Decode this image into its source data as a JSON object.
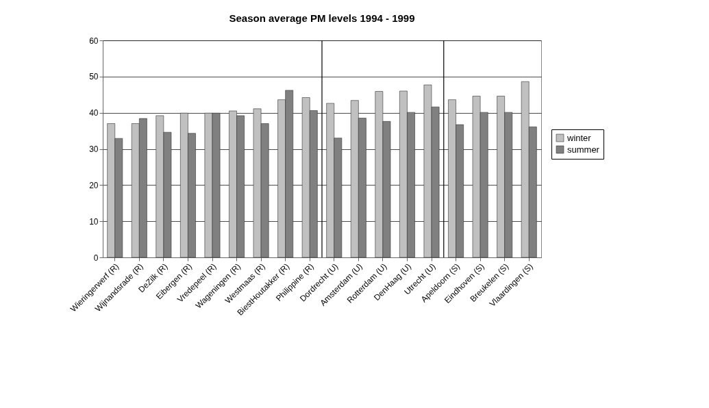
{
  "chart_data": {
    "type": "bar",
    "title": "Season average PM levels 1994 - 1999",
    "categories": [
      "Wieringerwerf (R)",
      "Wijnandsrade (R)",
      "DeZilk (R)",
      "Eibergen (R)",
      "Vredepeel (R)",
      "Wageningen (R)",
      "Westmaas (R)",
      "BiestHoutakker (R)",
      "Philippine (R)",
      "Dordrecht (U)",
      "Amsterdam (U)",
      "Rotterdam (U)",
      "DenHaag (U)",
      "Utrecht (U)",
      "Apeldoorn (S)",
      "Eindhoven (S)",
      "Breukelen (S)",
      "Vlaardingen (S)"
    ],
    "series": [
      {
        "name": "winter",
        "color": "#c0c0c0",
        "values": [
          37.0,
          37.0,
          39.2,
          39.9,
          39.9,
          40.5,
          41.1,
          43.6,
          44.2,
          42.6,
          43.4,
          45.9,
          46.0,
          47.7,
          43.6,
          44.6,
          44.6,
          48.6
        ]
      },
      {
        "name": "summer",
        "color": "#808080",
        "values": [
          32.9,
          38.4,
          34.6,
          34.3,
          39.9,
          39.2,
          37.0,
          46.2,
          40.6,
          33.0,
          38.5,
          37.6,
          40.1,
          41.6,
          36.7,
          40.1,
          40.1,
          36.1
        ]
      }
    ],
    "ylim": [
      0,
      60
    ],
    "yticks": [
      0,
      10,
      20,
      30,
      40,
      50,
      60
    ],
    "grid": "y",
    "legend": "right"
  }
}
